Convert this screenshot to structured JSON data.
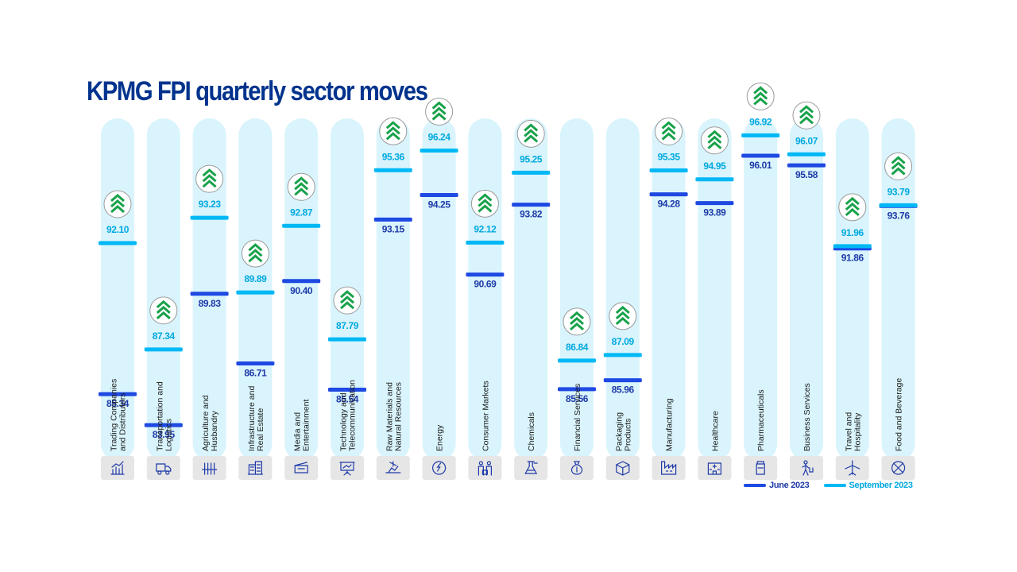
{
  "title": "KPMG FPI quarterly sector moves",
  "colors": {
    "june": "#1e49e2",
    "june_text": "#1e3aa8",
    "september": "#00b8f5",
    "september_text": "#00a9e0",
    "column_bg": "#d9f4fc",
    "icon_bg": "#e6e6e6",
    "arrow": "#17a24a",
    "title": "#00338d"
  },
  "legend": {
    "june_label": "June 2023",
    "september_label": "September 2023"
  },
  "chart_data": {
    "type": "dumbbell",
    "title": "KPMG FPI quarterly sector moves",
    "categories": [
      "Trading Companies and Distributors",
      "Transportation and Logistics",
      "Agriculture and Husbandry",
      "Infrastructure and Real Estate",
      "Media and Entertainment",
      "Technology and Telecommunication",
      "Raw Materials and Natural Resources",
      "Energy",
      "Consumer Markets",
      "Chemicals",
      "Financial Services",
      "Packaging Products",
      "Manufacturing",
      "Healthcare",
      "Pharmaceuticals",
      "Business Services",
      "Travel and Hospitality",
      "Food and Beverage"
    ],
    "label_lines": [
      [
        "Trading Companies",
        "and Distributors"
      ],
      [
        "Transportation and",
        "Logistics"
      ],
      [
        "Agriculture and",
        "Husbandry"
      ],
      [
        "Infrastructure and",
        "Real Estate"
      ],
      [
        "Media and",
        "Entertainment"
      ],
      [
        "Technology and",
        "Telecommunication"
      ],
      [
        "Raw Materials and",
        "Natural Resources"
      ],
      [
        "Energy"
      ],
      [
        "Consumer Markets"
      ],
      [
        "Chemicals"
      ],
      [
        "Financial Services"
      ],
      [
        "Packaging",
        "Products"
      ],
      [
        "Manufacturing"
      ],
      [
        "Healthcare"
      ],
      [
        "Pharmaceuticals"
      ],
      [
        "Business Services"
      ],
      [
        "Travel and",
        "Hospitality"
      ],
      [
        "Food and Beverage"
      ]
    ],
    "icons": [
      "bar-chart-icon",
      "truck-icon",
      "wheat-icon",
      "buildings-icon",
      "film-clapper-icon",
      "presentation-board-icon",
      "mining-icon",
      "energy-gauge-icon",
      "shopping-people-icon",
      "flask-icon",
      "money-bag-icon",
      "package-box-icon",
      "factory-icon",
      "hospital-icon",
      "medicine-bottle-icon",
      "business-person-icon",
      "airplane-icon",
      "no-food-icon"
    ],
    "series": [
      {
        "name": "June 2023",
        "values": [
          85.34,
          83.95,
          89.83,
          86.71,
          90.4,
          85.54,
          93.15,
          94.25,
          90.69,
          93.82,
          85.56,
          85.96,
          94.28,
          93.89,
          96.01,
          95.58,
          91.86,
          93.76
        ]
      },
      {
        "name": "September 2023",
        "values": [
          92.1,
          87.34,
          93.23,
          89.89,
          92.87,
          87.79,
          95.36,
          96.24,
          92.12,
          95.25,
          86.84,
          87.09,
          95.35,
          94.95,
          96.92,
          96.07,
          91.96,
          93.79
        ]
      }
    ],
    "value_labels": {
      "june": [
        "85.34",
        "83.95",
        "89.83",
        "86.71",
        "90.40",
        "85.54",
        "93.15",
        "94.25",
        "90.69",
        "93.82",
        "85.56",
        "85.96",
        "94.28",
        "93.89",
        "96.01",
        "95.58",
        "91.86",
        "93.76"
      ],
      "september": [
        "92.10",
        "87.34",
        "93.23",
        "89.89",
        "92.87",
        "87.79",
        "95.36",
        "96.24",
        "92.12",
        "95.25",
        "86.84",
        "87.09",
        "95.35",
        "94.95",
        "96.92",
        "96.07",
        "91.96",
        "93.79"
      ]
    },
    "up_arrow_indicator": "shown above every September marker",
    "ylim": [
      82,
      98
    ],
    "grid": false,
    "legend_position": "bottom-right"
  }
}
